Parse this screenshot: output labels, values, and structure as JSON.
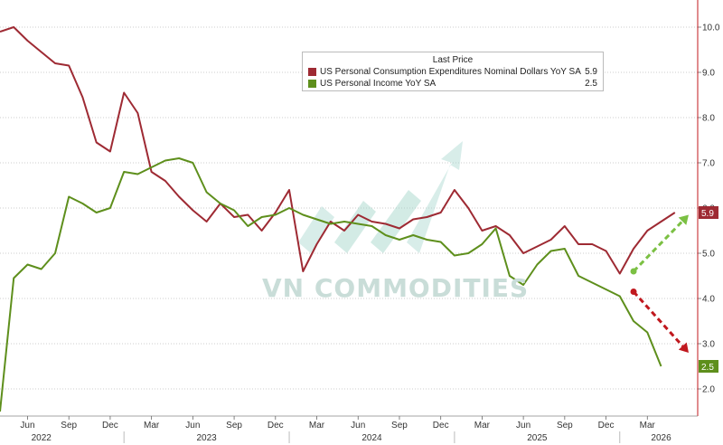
{
  "chart_data": {
    "type": "line",
    "legend": {
      "title": "Last Price",
      "placement": "top-center"
    },
    "series": [
      {
        "name": "US Personal Consumption Expenditures Nominal Dollars YoY SA",
        "last_value": "5.9",
        "color": "#9e2a33",
        "points": [
          [
            "2022-04",
            9.9
          ],
          [
            "2022-05",
            10.0
          ],
          [
            "2022-06",
            9.7
          ],
          [
            "2022-07",
            9.45
          ],
          [
            "2022-08",
            9.2
          ],
          [
            "2022-09",
            9.15
          ],
          [
            "2022-10",
            8.45
          ],
          [
            "2022-11",
            7.45
          ],
          [
            "2022-12",
            7.25
          ],
          [
            "2023-01",
            8.55
          ],
          [
            "2023-02",
            8.1
          ],
          [
            "2023-03",
            6.8
          ],
          [
            "2023-04",
            6.6
          ],
          [
            "2023-05",
            6.25
          ],
          [
            "2023-06",
            5.95
          ],
          [
            "2023-07",
            5.7
          ],
          [
            "2023-08",
            6.1
          ],
          [
            "2023-09",
            5.8
          ],
          [
            "2023-10",
            5.85
          ],
          [
            "2023-11",
            5.5
          ],
          [
            "2023-12",
            5.9
          ],
          [
            "2024-01",
            6.4
          ],
          [
            "2024-02",
            4.6
          ],
          [
            "2024-03",
            5.2
          ],
          [
            "2024-04",
            5.7
          ],
          [
            "2024-05",
            5.5
          ],
          [
            "2024-06",
            5.85
          ],
          [
            "2024-07",
            5.7
          ],
          [
            "2024-08",
            5.65
          ],
          [
            "2024-09",
            5.55
          ],
          [
            "2024-10",
            5.75
          ],
          [
            "2024-11",
            5.8
          ],
          [
            "2024-12",
            5.9
          ],
          [
            "2025-01",
            6.4
          ],
          [
            "2025-02",
            6.0
          ],
          [
            "2025-03",
            5.5
          ],
          [
            "2025-04",
            5.6
          ],
          [
            "2025-05",
            5.4
          ],
          [
            "2025-06",
            5.0
          ],
          [
            "2025-07",
            5.15
          ],
          [
            "2025-08",
            5.3
          ],
          [
            "2025-09",
            5.6
          ],
          [
            "2025-10",
            5.2
          ],
          [
            "2025-11",
            5.2
          ],
          [
            "2025-12",
            5.05
          ],
          [
            "2026-01",
            4.55
          ],
          [
            "2026-02",
            5.1
          ],
          [
            "2026-03",
            5.5
          ],
          [
            "2026-04",
            5.7
          ],
          [
            "2026-05",
            5.9
          ]
        ]
      },
      {
        "name": "US Personal Income YoY SA",
        "last_value": "2.5",
        "color": "#5e8f1c",
        "points": [
          [
            "2022-04",
            1.5
          ],
          [
            "2022-05",
            4.45
          ],
          [
            "2022-06",
            4.75
          ],
          [
            "2022-07",
            4.65
          ],
          [
            "2022-08",
            5.0
          ],
          [
            "2022-09",
            6.25
          ],
          [
            "2022-10",
            6.1
          ],
          [
            "2022-11",
            5.9
          ],
          [
            "2022-12",
            6.0
          ],
          [
            "2023-01",
            6.8
          ],
          [
            "2023-02",
            6.75
          ],
          [
            "2023-03",
            6.9
          ],
          [
            "2023-04",
            7.05
          ],
          [
            "2023-05",
            7.1
          ],
          [
            "2023-06",
            7.0
          ],
          [
            "2023-07",
            6.35
          ],
          [
            "2023-08",
            6.1
          ],
          [
            "2023-09",
            5.95
          ],
          [
            "2023-10",
            5.6
          ],
          [
            "2023-11",
            5.8
          ],
          [
            "2023-12",
            5.85
          ],
          [
            "2024-01",
            6.0
          ],
          [
            "2024-02",
            5.85
          ],
          [
            "2024-03",
            5.75
          ],
          [
            "2024-04",
            5.65
          ],
          [
            "2024-05",
            5.7
          ],
          [
            "2024-06",
            5.65
          ],
          [
            "2024-07",
            5.6
          ],
          [
            "2024-08",
            5.4
          ],
          [
            "2024-09",
            5.3
          ],
          [
            "2024-10",
            5.4
          ],
          [
            "2024-11",
            5.3
          ],
          [
            "2024-12",
            5.25
          ],
          [
            "2025-01",
            4.95
          ],
          [
            "2025-02",
            5.0
          ],
          [
            "2025-03",
            5.2
          ],
          [
            "2025-04",
            5.55
          ],
          [
            "2025-05",
            4.5
          ],
          [
            "2025-06",
            4.3
          ],
          [
            "2025-07",
            4.75
          ],
          [
            "2025-08",
            5.05
          ],
          [
            "2025-09",
            5.1
          ],
          [
            "2025-10",
            4.5
          ],
          [
            "2025-11",
            4.35
          ],
          [
            "2025-12",
            4.2
          ],
          [
            "2026-01",
            4.05
          ],
          [
            "2026-02",
            3.5
          ],
          [
            "2026-03",
            3.25
          ],
          [
            "2026-04",
            2.5
          ]
        ]
      }
    ],
    "x_axis": {
      "range": [
        "2022-04",
        "2026-06"
      ],
      "ticks": [
        {
          "date": "2022-06",
          "label": "Jun"
        },
        {
          "date": "2022-09",
          "label": "Sep"
        },
        {
          "date": "2022-12",
          "label": "Dec"
        },
        {
          "date": "2023-03",
          "label": "Mar"
        },
        {
          "date": "2023-06",
          "label": "Jun"
        },
        {
          "date": "2023-09",
          "label": "Sep"
        },
        {
          "date": "2023-12",
          "label": "Dec"
        },
        {
          "date": "2024-03",
          "label": "Mar"
        },
        {
          "date": "2024-06",
          "label": "Jun"
        },
        {
          "date": "2024-09",
          "label": "Sep"
        },
        {
          "date": "2024-12",
          "label": "Dec"
        },
        {
          "date": "2025-03",
          "label": "Mar"
        },
        {
          "date": "2025-06",
          "label": "Jun"
        },
        {
          "date": "2025-09",
          "label": "Sep"
        },
        {
          "date": "2025-12",
          "label": "Dec"
        },
        {
          "date": "2026-03",
          "label": "Mar"
        }
      ],
      "years": [
        {
          "date": "2022-07",
          "label": "2022"
        },
        {
          "date": "2023-07",
          "label": "2023"
        },
        {
          "date": "2024-07",
          "label": "2024"
        },
        {
          "date": "2025-07",
          "label": "2025"
        },
        {
          "date": "2026-04",
          "label": "2026"
        }
      ]
    },
    "y_axis": {
      "position": "right",
      "range": [
        1.4,
        10.6
      ],
      "ticks": [
        "10.0",
        "9.0",
        "8.0",
        "7.0",
        "6.0",
        "5.0",
        "4.0",
        "3.0",
        "2.0"
      ]
    },
    "grid": "horizontal dotted",
    "annotations": [
      {
        "kind": "dashed-arrow",
        "color": "#7bc043",
        "from": [
          "2026-02",
          4.6
        ],
        "to": [
          "2026-06",
          5.85
        ],
        "direction": "up"
      },
      {
        "kind": "dashed-arrow",
        "color": "#c0181e",
        "from": [
          "2026-02",
          4.15
        ],
        "to": [
          "2026-06",
          2.8
        ],
        "direction": "down"
      }
    ]
  },
  "watermark": {
    "text": "VN COMMODITIES",
    "color": "#c9ddd8"
  }
}
